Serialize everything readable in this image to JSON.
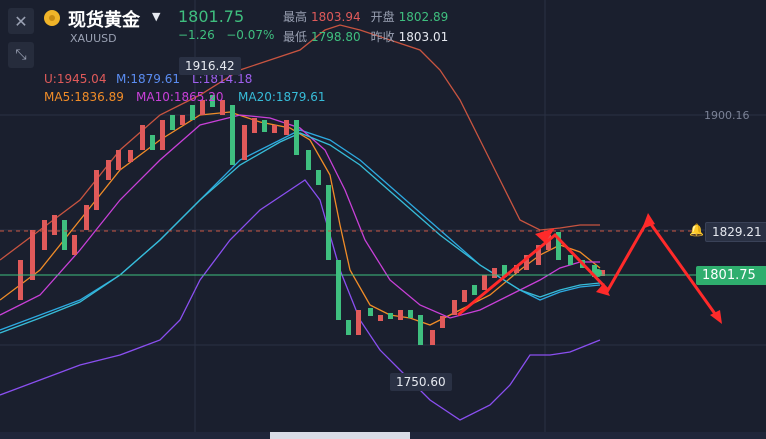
{
  "header": {
    "name": "现货黄金",
    "code": "XAUUSD",
    "price": "1801.75",
    "change": "−1.26",
    "change_pct": "−0.07%",
    "high_label": "最高",
    "high_value": "1803.94",
    "open_label": "开盘",
    "open_value": "1802.89",
    "low_label": "最低",
    "low_value": "1798.80",
    "prev_close_label": "昨收",
    "prev_close_value": "1803.01"
  },
  "indicators": {
    "boll_u": "U:1945.04",
    "boll_m": "M:1879.61",
    "boll_l": "L:1814.18",
    "ma5": "MA5:1836.89",
    "ma10": "MA10:1865.20",
    "ma20": "MA20:1879.61"
  },
  "price_labels": {
    "high_point": "1916.42",
    "low_point": "1750.60",
    "axis_tick": "1900.16",
    "alert_price": "1829.21",
    "current_price": "1801.75"
  },
  "colors": {
    "background": "#1a1f2e",
    "up": "#e05a5a",
    "down": "#3fbf7f",
    "boll_u": "#c85440",
    "boll_m": "#2da9e0",
    "boll_l": "#8a4ff0",
    "ma5": "#f08c28",
    "ma10": "#c840d8",
    "ma20": "#37bcd8",
    "arrow": "#ff2a2a"
  },
  "icons": {
    "close": "close-icon",
    "fullscreen": "shrink-icon",
    "alert": "bell-icon"
  }
}
